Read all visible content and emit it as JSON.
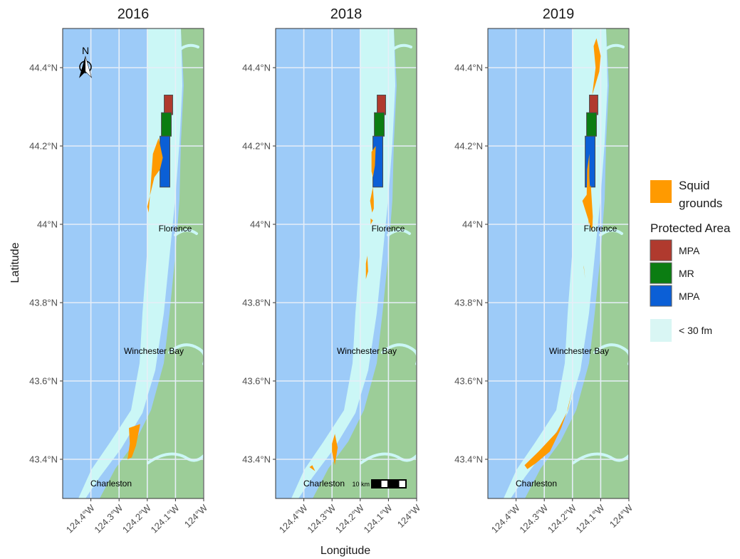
{
  "panels": [
    {
      "title": "2016",
      "north_arrow": true,
      "scale_bar": false,
      "places": [
        "Florence",
        "Winchester Bay",
        "Charleston"
      ],
      "squid_grounds": [
        [
          [
            124.18,
            44.18
          ],
          [
            124.16,
            44.22
          ],
          [
            124.145,
            44.17
          ],
          [
            124.155,
            44.14
          ],
          [
            124.175,
            44.12
          ],
          [
            124.19,
            44.075
          ],
          [
            124.2,
            44.045
          ],
          [
            124.195,
            44.03
          ]
        ],
        [
          [
            124.265,
            43.48
          ],
          [
            124.225,
            43.49
          ],
          [
            124.24,
            43.435
          ],
          [
            124.255,
            43.405
          ],
          [
            124.27,
            43.4
          ],
          [
            124.262,
            43.44
          ]
        ]
      ]
    },
    {
      "title": "2018",
      "north_arrow": false,
      "scale_bar": true,
      "scale_label": "10 km",
      "places": [
        "Florence",
        "Winchester Bay",
        "Charleston"
      ],
      "squid_grounds": [
        [
          [
            124.16,
            44.185
          ],
          [
            124.145,
            44.2
          ],
          [
            124.148,
            44.15
          ],
          [
            124.155,
            44.12
          ],
          [
            124.16,
            44.135
          ]
        ],
        [
          [
            124.155,
            44.095
          ],
          [
            124.152,
            44.06
          ],
          [
            124.152,
            44.04
          ],
          [
            124.158,
            44.03
          ],
          [
            124.165,
            44.06
          ]
        ],
        [
          [
            124.163,
            44.015
          ],
          [
            124.155,
            44.01
          ],
          [
            124.163,
            44.0
          ]
        ],
        [
          [
            124.175,
            43.92
          ],
          [
            124.172,
            43.88
          ],
          [
            124.18,
            43.86
          ],
          [
            124.18,
            43.9
          ]
        ],
        [
          [
            124.29,
            43.465
          ],
          [
            124.28,
            43.43
          ],
          [
            124.29,
            43.385
          ],
          [
            124.3,
            43.42
          ],
          [
            124.3,
            43.44
          ]
        ],
        [
          [
            124.37,
            43.385
          ],
          [
            124.36,
            43.37
          ],
          [
            124.38,
            43.38
          ]
        ]
      ]
    },
    {
      "title": "2019",
      "north_arrow": false,
      "scale_bar": false,
      "places": [
        "Florence",
        "Winchester Bay",
        "Charleston"
      ],
      "squid_grounds": [
        [
          [
            124.115,
            44.475
          ],
          [
            124.1,
            44.43
          ],
          [
            124.105,
            44.39
          ],
          [
            124.13,
            44.33
          ],
          [
            124.125,
            44.36
          ],
          [
            124.118,
            44.4
          ],
          [
            124.125,
            44.455
          ]
        ],
        [
          [
            124.14,
            44.18
          ],
          [
            124.148,
            44.14
          ],
          [
            124.15,
            44.06
          ],
          [
            124.142,
            44.0
          ],
          [
            124.135,
            44.05
          ],
          [
            124.14,
            44.12
          ]
        ],
        [
          [
            124.165,
            44.06
          ],
          [
            124.145,
            44.08
          ],
          [
            124.135,
            44.1
          ],
          [
            124.128,
            44.02
          ],
          [
            124.13,
            43.98
          ]
        ],
        [
          [
            124.16,
            43.89
          ],
          [
            124.155,
            43.86
          ],
          [
            124.16,
            43.895
          ]
        ],
        [
          [
            124.2,
            43.58
          ],
          [
            124.215,
            43.53
          ],
          [
            124.24,
            43.48
          ],
          [
            124.28,
            43.42
          ],
          [
            124.33,
            43.39
          ],
          [
            124.36,
            43.375
          ],
          [
            124.37,
            43.385
          ],
          [
            124.32,
            43.42
          ],
          [
            124.255,
            43.47
          ],
          [
            124.22,
            43.52
          ],
          [
            124.205,
            43.565
          ]
        ]
      ]
    }
  ],
  "protected_areas": [
    {
      "label": "MPA",
      "color": "#b03a2e",
      "lat": [
        44.28,
        44.33
      ],
      "lon": [
        124.11,
        124.14
      ]
    },
    {
      "label": "MR",
      "color": "#0b7d12",
      "lat": [
        44.225,
        44.285
      ],
      "lon": [
        124.115,
        124.15
      ]
    },
    {
      "label": "MPA",
      "color": "#0b5fd6",
      "lat": [
        44.095,
        44.225
      ],
      "lon": [
        124.12,
        124.155
      ]
    }
  ],
  "axes": {
    "xlabel": "Longitude",
    "ylabel": "Latitude",
    "x_ticks": [
      "124.4°W",
      "124.3°W",
      "124.2°W",
      "124.1°W",
      "124°W"
    ],
    "x_tick_values": [
      124.4,
      124.3,
      124.2,
      124.1,
      124.0
    ],
    "y_ticks": [
      "44.4°N",
      "44.2°N",
      "44°N",
      "43.8°N",
      "43.6°N",
      "43.4°N"
    ],
    "y_tick_values": [
      44.4,
      44.2,
      44.0,
      43.8,
      43.6,
      43.4
    ],
    "x_range": [
      124.5,
      124.0
    ],
    "y_range": [
      43.3,
      44.5
    ]
  },
  "legend": {
    "squid_label": "Squid grounds",
    "squid_label_lines": [
      "Squid",
      "grounds"
    ],
    "squid_color": "#ff9a00",
    "protected_title": "Protected Area",
    "protected_items": [
      {
        "label": "MPA",
        "color": "#b03a2e"
      },
      {
        "label": "MR",
        "color": "#0b7d12"
      },
      {
        "label": "MPA",
        "color": "#0b5fd6"
      }
    ],
    "depth_label": "< 30 fm",
    "depth_color": "#d9f6f4"
  },
  "colors": {
    "ocean": "#9dcbf8",
    "shallow": "#cbf7f6",
    "land": "#9ccd98",
    "squid": "#ff9a00"
  },
  "icons": {
    "north_arrow": "north-arrow-icon",
    "scale_bar": "scale-bar-icon"
  }
}
